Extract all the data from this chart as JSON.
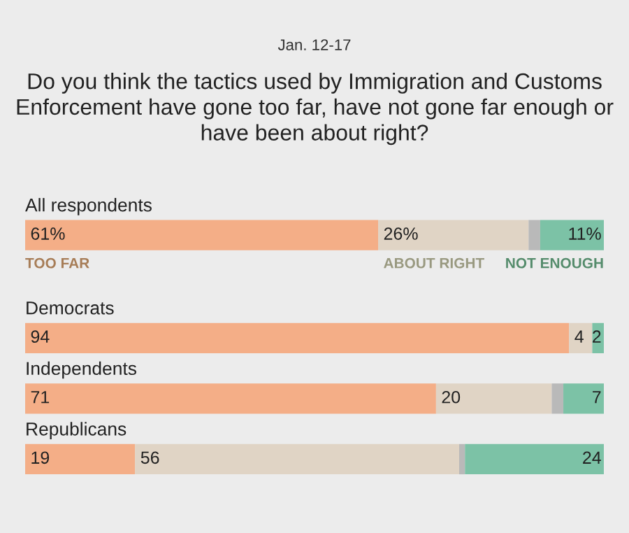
{
  "chart_data": {
    "type": "bar",
    "orientation": "horizontal",
    "stacked": true,
    "title": "Do you think the tactics used by Immigration and Customs Enforcement have gone too far, have not gone far enough or have been about right?",
    "subtitle": "Jan. 12-17",
    "categories": [
      "All respondents",
      "Democrats",
      "Independents",
      "Republicans"
    ],
    "series": [
      {
        "name": "TOO FAR",
        "color": "#f4ae87",
        "values": [
          61,
          94,
          71,
          19
        ],
        "value_labels": [
          "61%",
          "94",
          "71",
          "19"
        ]
      },
      {
        "name": "ABOUT RIGHT",
        "color": "#e0d4c5",
        "values": [
          26,
          4,
          20,
          56
        ],
        "value_labels": [
          "26%",
          "4",
          "20",
          "56"
        ]
      },
      {
        "color": "#b9b9b9",
        "values": [
          2,
          0,
          2,
          1
        ]
      },
      {
        "name": "NOT ENOUGH",
        "color": "#7cc2a6",
        "values": [
          11,
          2,
          7,
          24
        ],
        "value_labels": [
          "11%",
          "2",
          "7",
          "24"
        ]
      }
    ],
    "xlim": [
      0,
      100
    ],
    "legend": "top left"
  }
}
